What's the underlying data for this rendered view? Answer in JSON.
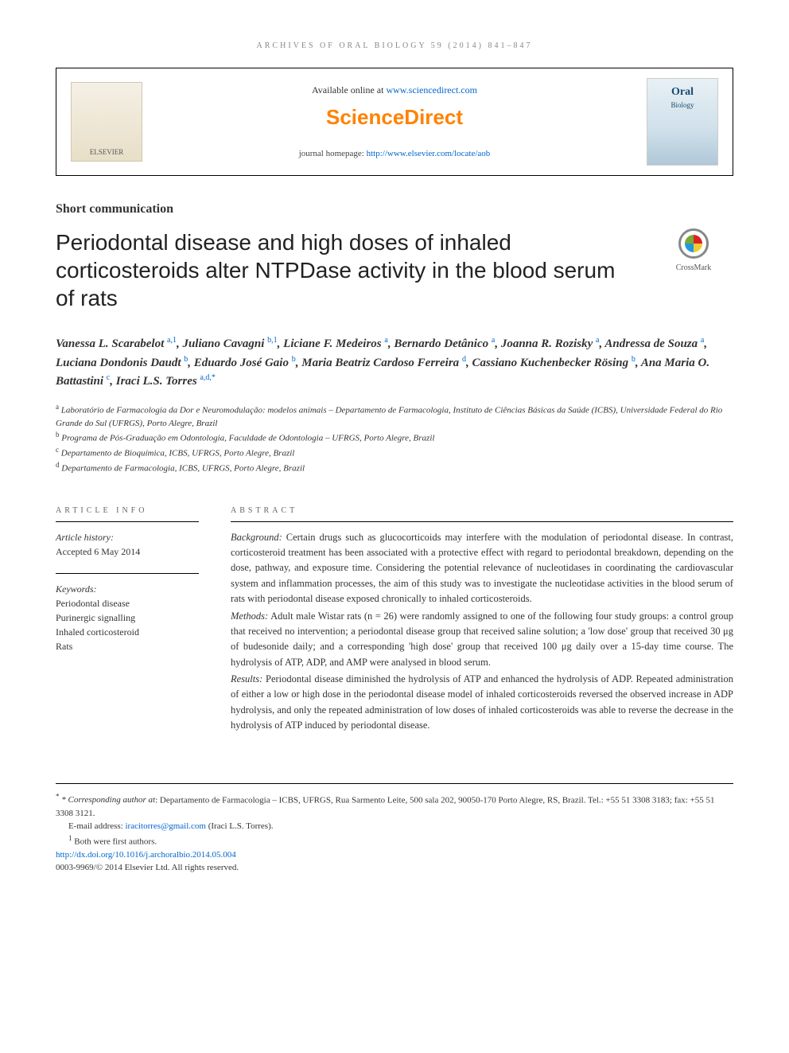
{
  "running_head": "ARCHIVES OF ORAL BIOLOGY 59 (2014) 841–847",
  "header": {
    "available_text": "Available online at ",
    "available_url": "www.sciencedirect.com",
    "sd_logo_text": "ScienceDirect",
    "journal_hp_label": "journal homepage: ",
    "journal_hp_url": "http://www.elsevier.com/locate/aob",
    "publisher_logo_text": "ELSEVIER",
    "journal_name_line1": "Oral",
    "journal_name_line2": "Biology"
  },
  "article_type": "Short communication",
  "title": "Periodontal disease and high doses of inhaled corticosteroids alter NTPDase activity in the blood serum of rats",
  "crossmark_label": "CrossMark",
  "authors_html": "Vanessa L. Scarabelot <sup><a>a</a>,<a>1</a></sup>, Juliano Cavagni <sup><a>b</a>,<a>1</a></sup>, Liciane F. Medeiros <sup><a>a</a></sup>, Bernardo Detânico <sup><a>a</a></sup>, Joanna R. Rozisky <sup><a>a</a></sup>, Andressa de Souza <sup><a>a</a></sup>, Luciana Dondonis Daudt <sup><a>b</a></sup>, Eduardo José Gaio <sup><a>b</a></sup>, Maria Beatriz Cardoso Ferreira <sup><a>d</a></sup>, Cassiano Kuchenbecker Rösing <sup><a>b</a></sup>, Ana Maria O. Battastini <sup><a>c</a></sup>, Iraci L.S. Torres <sup><a>a</a>,<a>d</a>,<a>*</a></sup>",
  "affiliations": [
    {
      "sup": "a",
      "text": "Laboratório de Farmacologia da Dor e Neuromodulação: modelos animais – Departamento de Farmacologia, Instituto de Ciências Básicas da Saúde (ICBS), Universidade Federal do Rio Grande do Sul (UFRGS), Porto Alegre, Brazil"
    },
    {
      "sup": "b",
      "text": "Programa de Pós-Graduação em Odontologia, Faculdade de Odontologia – UFRGS, Porto Alegre, Brazil"
    },
    {
      "sup": "c",
      "text": "Departamento de Bioquímica, ICBS, UFRGS, Porto Alegre, Brazil"
    },
    {
      "sup": "d",
      "text": "Departamento de Farmacologia, ICBS, UFRGS, Porto Alegre, Brazil"
    }
  ],
  "info": {
    "head_info": "ARTICLE INFO",
    "history_label": "Article history:",
    "history_value": "Accepted 6 May 2014",
    "keywords_label": "Keywords:",
    "keywords": [
      "Periodontal disease",
      "Purinergic signalling",
      "Inhaled corticosteroid",
      "Rats"
    ]
  },
  "abstract": {
    "head": "ABSTRACT",
    "sections": [
      {
        "label": "Background:",
        "text": " Certain drugs such as glucocorticoids may interfere with the modulation of periodontal disease. In contrast, corticosteroid treatment has been associated with a protective effect with regard to periodontal breakdown, depending on the dose, pathway, and exposure time. Considering the potential relevance of nucleotidases in coordinating the cardiovascular system and inflammation processes, the aim of this study was to investigate the nucleotidase activities in the blood serum of rats with periodontal disease exposed chronically to inhaled corticosteroids."
      },
      {
        "label": "Methods:",
        "text": " Adult male Wistar rats (n = 26) were randomly assigned to one of the following four study groups: a control group that received no intervention; a periodontal disease group that received saline solution; a 'low dose' group that received 30 μg of budesonide daily; and a corresponding 'high dose' group that received 100 μg daily over a 15-day time course. The hydrolysis of ATP, ADP, and AMP were analysed in blood serum."
      },
      {
        "label": "Results:",
        "text": " Periodontal disease diminished the hydrolysis of ATP and enhanced the hydrolysis of ADP. Repeated administration of either a low or high dose in the periodontal disease model of inhaled corticosteroids reversed the observed increase in ADP hydrolysis, and only the repeated administration of low doses of inhaled corticosteroids was able to reverse the decrease in the hydrolysis of ATP induced by periodontal disease."
      }
    ]
  },
  "footnotes": {
    "corr_label": "* Corresponding author at",
    "corr_text": ": Departamento de Farmacologia – ICBS, UFRGS, Rua Sarmento Leite, 500 sala 202, 90050-170 Porto Alegre, RS, Brazil. Tel.: +55 51 3308 3183; fax: +55 51 3308 3121.",
    "email_label": "E-mail address: ",
    "email": "iracitorres@gmail.com",
    "email_person": " (Iraci L.S. Torres).",
    "shared_first": "Both were first authors.",
    "doi": "http://dx.doi.org/10.1016/j.archoralbio.2014.05.004",
    "issn_line": "0003-9969/© 2014 Elsevier Ltd. All rights reserved."
  },
  "colors": {
    "link": "#0066cc",
    "sd_orange": "#ff8200",
    "text": "#333333",
    "rule": "#000000"
  }
}
